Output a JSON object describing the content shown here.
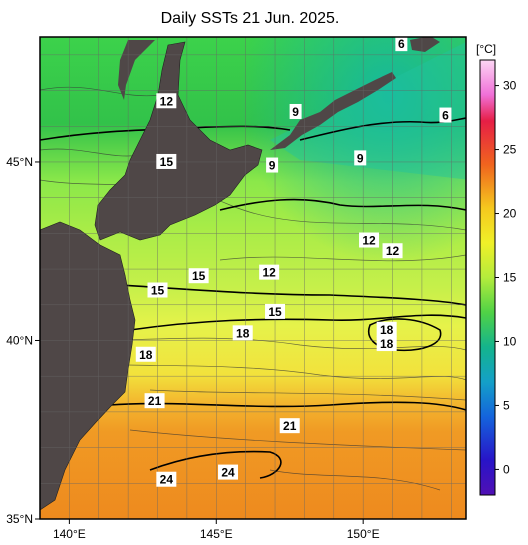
{
  "title": "Daily SSTs 21 Jun. 2025.",
  "colorbar": {
    "unit": "[°C]",
    "ticks": [
      "30",
      "25",
      "20",
      "15",
      "10",
      "5",
      "0"
    ],
    "tick_values": [
      30,
      25,
      20,
      15,
      10,
      5,
      0
    ],
    "range": [
      -2,
      32
    ]
  },
  "axes": {
    "lat_labels": [
      "45°N",
      "40°N",
      "35°N"
    ],
    "lat_values": [
      45,
      40,
      35
    ],
    "lon_labels": [
      "140°E",
      "145°E",
      "150°E"
    ],
    "lon_values": [
      140,
      145,
      150
    ],
    "lat_range": [
      35,
      48.5
    ],
    "lon_range": [
      139,
      153.5
    ]
  },
  "contour_labels": [
    {
      "text": "12",
      "lon": 143.3,
      "lat": 46.7
    },
    {
      "text": "9",
      "lon": 147.7,
      "lat": 46.4
    },
    {
      "text": "6",
      "lon": 151.3,
      "lat": 48.3
    },
    {
      "text": "6",
      "lon": 152.8,
      "lat": 46.3
    },
    {
      "text": "15",
      "lon": 143.3,
      "lat": 45.0
    },
    {
      "text": "9",
      "lon": 146.9,
      "lat": 44.9
    },
    {
      "text": "9",
      "lon": 149.9,
      "lat": 45.1
    },
    {
      "text": "12",
      "lon": 150.2,
      "lat": 42.8
    },
    {
      "text": "12",
      "lon": 151.0,
      "lat": 42.5
    },
    {
      "text": "15",
      "lon": 144.4,
      "lat": 41.8
    },
    {
      "text": "12",
      "lon": 146.8,
      "lat": 41.9
    },
    {
      "text": "15",
      "lon": 143.0,
      "lat": 41.4
    },
    {
      "text": "15",
      "lon": 147.0,
      "lat": 40.8
    },
    {
      "text": "18",
      "lon": 150.8,
      "lat": 40.3
    },
    {
      "text": "18",
      "lon": 145.9,
      "lat": 40.2
    },
    {
      "text": "18",
      "lon": 150.8,
      "lat": 39.9
    },
    {
      "text": "18",
      "lon": 142.6,
      "lat": 39.6
    },
    {
      "text": "21",
      "lon": 142.9,
      "lat": 38.3
    },
    {
      "text": "21",
      "lon": 147.5,
      "lat": 37.6
    },
    {
      "text": "24",
      "lon": 145.4,
      "lat": 36.3
    },
    {
      "text": "24",
      "lon": 143.3,
      "lat": 36.1
    }
  ],
  "colors": {
    "land": "#4f4747",
    "frame": "#000000"
  }
}
